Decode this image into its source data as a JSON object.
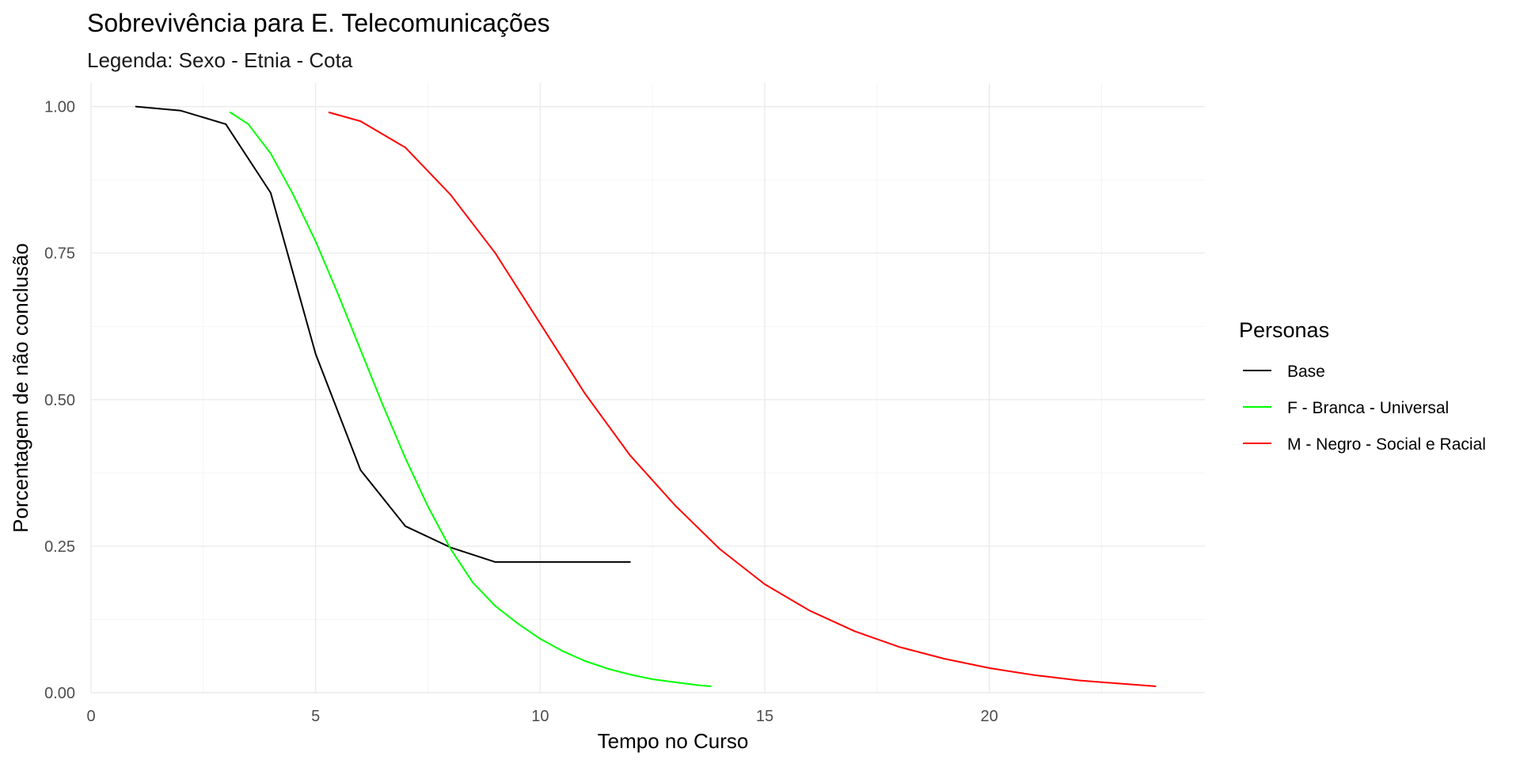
{
  "chart_data": {
    "type": "line",
    "title": "Sobrevivência para E. Telecomunicações",
    "subtitle": "Legenda: Sexo - Etnia - Cota",
    "xlabel": "Tempo no Curso",
    "ylabel": "Porcentagem de não conclusão",
    "xlim": [
      0,
      24.8
    ],
    "ylim": [
      0,
      1.04
    ],
    "x_ticks": [
      0,
      5,
      10,
      15,
      20
    ],
    "x_tick_labels": [
      "0",
      "5",
      "10",
      "15",
      "20"
    ],
    "y_ticks": [
      0,
      0.25,
      0.5,
      0.75,
      1.0
    ],
    "y_tick_labels": [
      "0.00",
      "0.25",
      "0.50",
      "0.75",
      "1.00"
    ],
    "grid": true,
    "legend": {
      "title": "Personas",
      "position": "right"
    },
    "series": [
      {
        "name": "Base",
        "color": "#000000",
        "x": [
          1,
          2,
          3,
          4,
          5,
          6,
          7,
          8,
          9,
          10,
          11,
          12
        ],
        "y": [
          1.0,
          0.993,
          0.97,
          0.853,
          0.578,
          0.38,
          0.284,
          0.248,
          0.223,
          0.223,
          0.223,
          0.223
        ]
      },
      {
        "name": "F - Branca - Universal",
        "color": "#00ff00",
        "x": [
          3.1,
          3.5,
          4.0,
          4.5,
          5.0,
          5.5,
          6.0,
          6.5,
          7.0,
          7.5,
          8.0,
          8.5,
          9.0,
          9.5,
          10.0,
          10.5,
          11.0,
          11.5,
          12.0,
          12.5,
          13.0,
          13.5,
          13.8
        ],
        "y": [
          0.99,
          0.97,
          0.92,
          0.85,
          0.77,
          0.68,
          0.585,
          0.49,
          0.4,
          0.318,
          0.246,
          0.188,
          0.148,
          0.118,
          0.092,
          0.071,
          0.054,
          0.041,
          0.031,
          0.023,
          0.018,
          0.013,
          0.011
        ]
      },
      {
        "name": "M - Negro - Social e Racial",
        "color": "#ff0000",
        "x": [
          5.3,
          6.0,
          7.0,
          8.0,
          9.0,
          10.0,
          11.0,
          12.0,
          13.0,
          14.0,
          15.0,
          16.0,
          17.0,
          18.0,
          19.0,
          20.0,
          21.0,
          22.0,
          23.0,
          23.7
        ],
        "y": [
          0.99,
          0.975,
          0.93,
          0.85,
          0.75,
          0.63,
          0.51,
          0.405,
          0.32,
          0.245,
          0.185,
          0.14,
          0.105,
          0.078,
          0.058,
          0.042,
          0.03,
          0.021,
          0.015,
          0.011
        ]
      }
    ]
  }
}
